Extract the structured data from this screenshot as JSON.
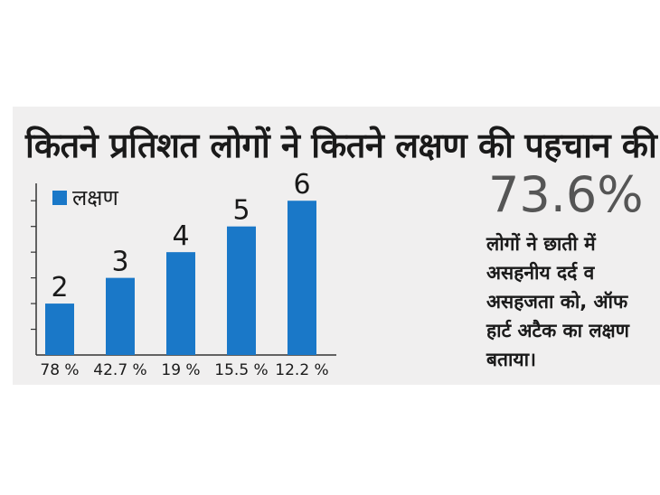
{
  "chart_data": {
    "type": "bar",
    "title": "कितने प्रतिशत लोगों ने कितने लक्षण की पहचान की",
    "legend": [
      "लक्षण"
    ],
    "categories": [
      "78 %",
      "42.7 %",
      "19 %",
      "15.5 %",
      "12.2 %"
    ],
    "values": [
      2,
      3,
      4,
      5,
      6
    ],
    "data_labels": [
      "2",
      "3",
      "4",
      "5",
      "6"
    ],
    "ylim": [
      0,
      6.5
    ],
    "grid": false,
    "bar_color": "#1a78c8",
    "legend_position": "top-left"
  },
  "callout": {
    "value": "73.6%",
    "text": "लोगों ने छाती में असहनीय दर्द व असहजता को, ऑफ हार्ट अटैक का लक्षण बताया।"
  }
}
